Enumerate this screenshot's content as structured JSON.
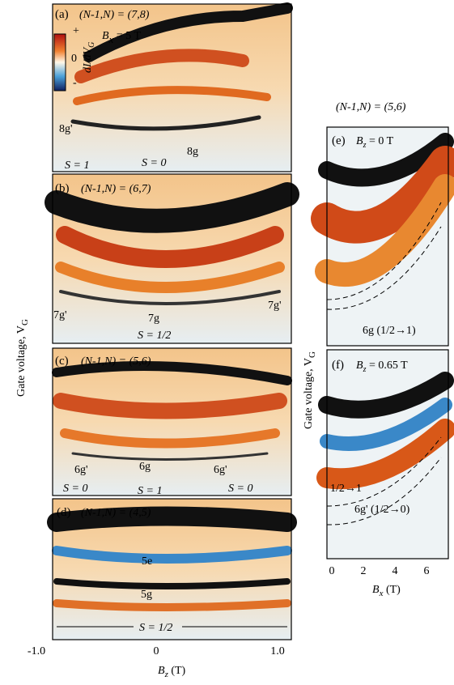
{
  "figure": {
    "y_label": "Gate voltage, V",
    "y_label_sub": "G",
    "left_x_ticks": [
      "-1.0",
      "0",
      "1.0"
    ],
    "left_x_label": {
      "main": "B",
      "sub": "z",
      "rest": " (T)"
    },
    "right_x_ticks": [
      "0",
      "2",
      "4",
      "6"
    ],
    "right_x_label": {
      "main": "B",
      "sub": "x",
      "rest": " (T)"
    },
    "right_heading": "(N-1,N) = (5,6)",
    "colorbar": {
      "label": "dI/dV",
      "label_sub": "G",
      "ticks": [
        "+",
        "0",
        "-"
      ]
    },
    "panels": [
      {
        "label": "(a)",
        "title": "(N-1,N) = (7,8)",
        "field": {
          "main": "B",
          "sub": "x",
          "rest": " = 5 T"
        },
        "annotations": [
          "8g'",
          "8g"
        ],
        "spins": [
          "S = 1",
          "S = 0"
        ]
      },
      {
        "label": "(b)",
        "title": "(N-1,N) = (6,7)",
        "annotations": [
          "7g'",
          "7g",
          "7g'"
        ],
        "spins": [
          "S = 1/2"
        ]
      },
      {
        "label": "(c)",
        "title": "(N-1,N) = (5,6)",
        "annotations": [
          "6g'",
          "6g",
          "6g'"
        ],
        "spins": [
          "S = 0",
          "S = 1",
          "S = 0"
        ]
      },
      {
        "label": "(d)",
        "title": "(N-1,N) = (4,5)",
        "annotations": [
          "5e",
          "5g"
        ],
        "spins": [
          "S = 1/2"
        ]
      },
      {
        "label": "(e)",
        "field": {
          "main": "B",
          "sub": "z",
          "rest": " = 0 T"
        },
        "annotations": [
          "6g (1/2→1)"
        ]
      },
      {
        "label": "(f)",
        "field": {
          "main": "B",
          "sub": "z",
          "rest": " = 0.65 T"
        },
        "annotations": [
          "1/2→1",
          "6g' (1/2→0)"
        ]
      }
    ]
  }
}
